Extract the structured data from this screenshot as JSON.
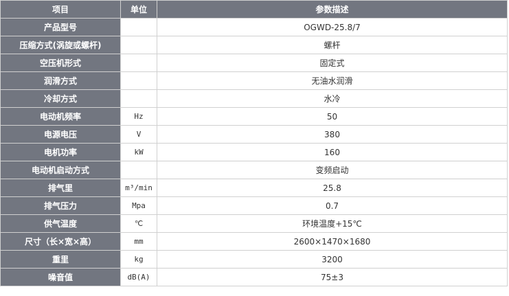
{
  "header": {
    "item": "项目",
    "unit": "单位",
    "desc": "参数描述"
  },
  "rows": [
    {
      "label": "产品型号",
      "unit": "",
      "value": "OGWD-25.8/7"
    },
    {
      "label": "压缩方式(涡旋或螺杆)",
      "unit": "",
      "value": "螺杆"
    },
    {
      "label": "空压机形式",
      "unit": "",
      "value": "固定式"
    },
    {
      "label": "润滑方式",
      "unit": "",
      "value": "无油水润滑"
    },
    {
      "label": "冷却方式",
      "unit": "",
      "value": "水冷"
    },
    {
      "label": "电动机频率",
      "unit": "Hz",
      "value": "50"
    },
    {
      "label": "电源电压",
      "unit": "V",
      "value": "380"
    },
    {
      "label": "电机功率",
      "unit": "kW",
      "value": "160"
    },
    {
      "label": "电动机启动方式",
      "unit": "",
      "value": "变频启动"
    },
    {
      "label": "排气里",
      "unit": "m³/min",
      "value": "25.8"
    },
    {
      "label": "排气压力",
      "unit": "Mpa",
      "value": "0.7"
    },
    {
      "label": "供气温度",
      "unit": "℃",
      "value": "环境温度+15℃"
    },
    {
      "label": "尺寸（长×宽×高）",
      "unit": "mm",
      "value": "2600×1470×1680"
    },
    {
      "label": "重里",
      "unit": "kg",
      "value": "3200"
    },
    {
      "label": "噪音值",
      "unit": "dB(A)",
      "value": "75±3"
    }
  ]
}
